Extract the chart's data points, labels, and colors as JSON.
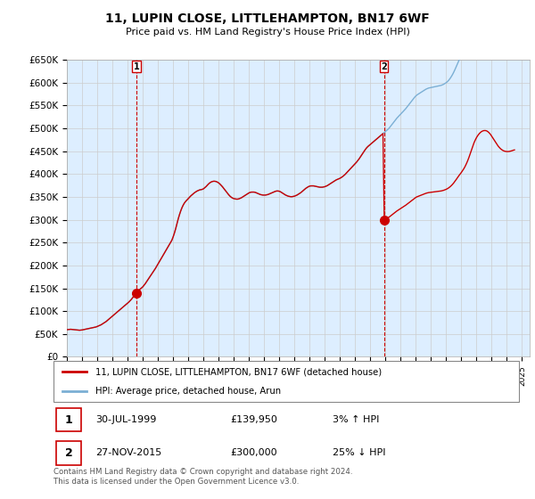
{
  "title": "11, LUPIN CLOSE, LITTLEHAMPTON, BN17 6WF",
  "subtitle": "Price paid vs. HM Land Registry's House Price Index (HPI)",
  "ylabel_ticks": [
    "£0",
    "£50K",
    "£100K",
    "£150K",
    "£200K",
    "£250K",
    "£300K",
    "£350K",
    "£400K",
    "£450K",
    "£500K",
    "£550K",
    "£600K",
    "£650K"
  ],
  "ylim": [
    0,
    650000
  ],
  "yticks": [
    0,
    50000,
    100000,
    150000,
    200000,
    250000,
    300000,
    350000,
    400000,
    450000,
    500000,
    550000,
    600000,
    650000
  ],
  "xlim_start": 1995.3,
  "xlim_end": 2025.5,
  "transaction1": {
    "year": 1999.58,
    "price": 139950,
    "label": "1"
  },
  "transaction2": {
    "year": 2015.9,
    "price": 300000,
    "label": "2"
  },
  "legend_line1": "11, LUPIN CLOSE, LITTLEHAMPTON, BN17 6WF (detached house)",
  "legend_line2": "HPI: Average price, detached house, Arun",
  "table_row1_num": "1",
  "table_row1_date": "30-JUL-1999",
  "table_row1_price": "£139,950",
  "table_row1_hpi": "3% ↑ HPI",
  "table_row2_num": "2",
  "table_row2_date": "27-NOV-2015",
  "table_row2_price": "£300,000",
  "table_row2_hpi": "25% ↓ HPI",
  "footer": "Contains HM Land Registry data © Crown copyright and database right 2024.\nThis data is licensed under the Open Government Licence v3.0.",
  "line_color_property": "#cc0000",
  "line_color_hpi": "#7bafd4",
  "marker_color": "#cc0000",
  "vline_color": "#cc0000",
  "grid_color": "#cccccc",
  "bg_color": "#ddeeff",
  "hpi_months": [
    1995.0,
    1995.083,
    1995.167,
    1995.25,
    1995.333,
    1995.417,
    1995.5,
    1995.583,
    1995.667,
    1995.75,
    1995.833,
    1995.917,
    1996.0,
    1996.083,
    1996.167,
    1996.25,
    1996.333,
    1996.417,
    1996.5,
    1996.583,
    1996.667,
    1996.75,
    1996.833,
    1996.917,
    1997.0,
    1997.083,
    1997.167,
    1997.25,
    1997.333,
    1997.417,
    1997.5,
    1997.583,
    1997.667,
    1997.75,
    1997.833,
    1997.917,
    1998.0,
    1998.083,
    1998.167,
    1998.25,
    1998.333,
    1998.417,
    1998.5,
    1998.583,
    1998.667,
    1998.75,
    1998.833,
    1998.917,
    1999.0,
    1999.083,
    1999.167,
    1999.25,
    1999.333,
    1999.417,
    1999.5,
    1999.583,
    1999.667,
    1999.75,
    1999.833,
    1999.917,
    2000.0,
    2000.083,
    2000.167,
    2000.25,
    2000.333,
    2000.417,
    2000.5,
    2000.583,
    2000.667,
    2000.75,
    2000.833,
    2000.917,
    2001.0,
    2001.083,
    2001.167,
    2001.25,
    2001.333,
    2001.417,
    2001.5,
    2001.583,
    2001.667,
    2001.75,
    2001.833,
    2001.917,
    2002.0,
    2002.083,
    2002.167,
    2002.25,
    2002.333,
    2002.417,
    2002.5,
    2002.583,
    2002.667,
    2002.75,
    2002.833,
    2002.917,
    2003.0,
    2003.083,
    2003.167,
    2003.25,
    2003.333,
    2003.417,
    2003.5,
    2003.583,
    2003.667,
    2003.75,
    2003.833,
    2003.917,
    2004.0,
    2004.083,
    2004.167,
    2004.25,
    2004.333,
    2004.417,
    2004.5,
    2004.583,
    2004.667,
    2004.75,
    2004.833,
    2004.917,
    2005.0,
    2005.083,
    2005.167,
    2005.25,
    2005.333,
    2005.417,
    2005.5,
    2005.583,
    2005.667,
    2005.75,
    2005.833,
    2005.917,
    2006.0,
    2006.083,
    2006.167,
    2006.25,
    2006.333,
    2006.417,
    2006.5,
    2006.583,
    2006.667,
    2006.75,
    2006.833,
    2006.917,
    2007.0,
    2007.083,
    2007.167,
    2007.25,
    2007.333,
    2007.417,
    2007.5,
    2007.583,
    2007.667,
    2007.75,
    2007.833,
    2007.917,
    2008.0,
    2008.083,
    2008.167,
    2008.25,
    2008.333,
    2008.417,
    2008.5,
    2008.583,
    2008.667,
    2008.75,
    2008.833,
    2008.917,
    2009.0,
    2009.083,
    2009.167,
    2009.25,
    2009.333,
    2009.417,
    2009.5,
    2009.583,
    2009.667,
    2009.75,
    2009.833,
    2009.917,
    2010.0,
    2010.083,
    2010.167,
    2010.25,
    2010.333,
    2010.417,
    2010.5,
    2010.583,
    2010.667,
    2010.75,
    2010.833,
    2010.917,
    2011.0,
    2011.083,
    2011.167,
    2011.25,
    2011.333,
    2011.417,
    2011.5,
    2011.583,
    2011.667,
    2011.75,
    2011.833,
    2011.917,
    2012.0,
    2012.083,
    2012.167,
    2012.25,
    2012.333,
    2012.417,
    2012.5,
    2012.583,
    2012.667,
    2012.75,
    2012.833,
    2012.917,
    2013.0,
    2013.083,
    2013.167,
    2013.25,
    2013.333,
    2013.417,
    2013.5,
    2013.583,
    2013.667,
    2013.75,
    2013.833,
    2013.917,
    2014.0,
    2014.083,
    2014.167,
    2014.25,
    2014.333,
    2014.417,
    2014.5,
    2014.583,
    2014.667,
    2014.75,
    2014.833,
    2014.917,
    2015.0,
    2015.083,
    2015.167,
    2015.25,
    2015.333,
    2015.417,
    2015.5,
    2015.583,
    2015.667,
    2015.75,
    2015.833,
    2015.917,
    2016.0,
    2016.083,
    2016.167,
    2016.25,
    2016.333,
    2016.417,
    2016.5,
    2016.583,
    2016.667,
    2016.75,
    2016.833,
    2016.917,
    2017.0,
    2017.083,
    2017.167,
    2017.25,
    2017.333,
    2017.417,
    2017.5,
    2017.583,
    2017.667,
    2017.75,
    2017.833,
    2017.917,
    2018.0,
    2018.083,
    2018.167,
    2018.25,
    2018.333,
    2018.417,
    2018.5,
    2018.583,
    2018.667,
    2018.75,
    2018.833,
    2018.917,
    2019.0,
    2019.083,
    2019.167,
    2019.25,
    2019.333,
    2019.417,
    2019.5,
    2019.583,
    2019.667,
    2019.75,
    2019.833,
    2019.917,
    2020.0,
    2020.083,
    2020.167,
    2020.25,
    2020.333,
    2020.417,
    2020.5,
    2020.583,
    2020.667,
    2020.75,
    2020.833,
    2020.917,
    2021.0,
    2021.083,
    2021.167,
    2021.25,
    2021.333,
    2021.417,
    2021.5,
    2021.583,
    2021.667,
    2021.75,
    2021.833,
    2021.917,
    2022.0,
    2022.083,
    2022.167,
    2022.25,
    2022.333,
    2022.417,
    2022.5,
    2022.583,
    2022.667,
    2022.75,
    2022.833,
    2022.917,
    2023.0,
    2023.083,
    2023.167,
    2023.25,
    2023.333,
    2023.417,
    2023.5,
    2023.583,
    2023.667,
    2023.75,
    2023.833,
    2023.917,
    2024.0,
    2024.083,
    2024.167,
    2024.25,
    2024.333,
    2024.417,
    2024.5
  ],
  "hpi_index": [
    100,
    100.5,
    101,
    101.5,
    101,
    100.5,
    100,
    99.5,
    99,
    98.5,
    98,
    98.5,
    99,
    100,
    101,
    102,
    103,
    104,
    105,
    106,
    107,
    108,
    109,
    110,
    112,
    114,
    116,
    118,
    121,
    124,
    127,
    130,
    134,
    138,
    142,
    146,
    150,
    154,
    158,
    162,
    166,
    170,
    174,
    178,
    182,
    186,
    190,
    194,
    198,
    202,
    207,
    212,
    218,
    224,
    230,
    236,
    242,
    246,
    250,
    254,
    258,
    264,
    270,
    277,
    284,
    291,
    298,
    305,
    312,
    319,
    326,
    334,
    342,
    350,
    358,
    366,
    374,
    382,
    390,
    398,
    406,
    414,
    422,
    430,
    442,
    456,
    472,
    490,
    508,
    524,
    538,
    550,
    560,
    568,
    574,
    579,
    584,
    589,
    594,
    598,
    602,
    606,
    609,
    612,
    614,
    616,
    617,
    618,
    620,
    624,
    628,
    633,
    638,
    642,
    645,
    647,
    648,
    648,
    647,
    645,
    642,
    638,
    633,
    628,
    622,
    616,
    610,
    604,
    598,
    593,
    589,
    586,
    584,
    583,
    582,
    582,
    583,
    585,
    587,
    590,
    593,
    596,
    599,
    602,
    605,
    607,
    608,
    608,
    608,
    607,
    605,
    603,
    601,
    599,
    598,
    597,
    597,
    597,
    598,
    599,
    601,
    603,
    605,
    607,
    609,
    611,
    612,
    612,
    611,
    609,
    606,
    603,
    600,
    597,
    595,
    593,
    592,
    591,
    591,
    592,
    593,
    595,
    597,
    600,
    603,
    606,
    610,
    614,
    618,
    622,
    625,
    628,
    630,
    631,
    631,
    631,
    630,
    629,
    628,
    627,
    626,
    626,
    626,
    627,
    628,
    630,
    632,
    635,
    638,
    641,
    644,
    647,
    650,
    653,
    655,
    657,
    659,
    662,
    665,
    669,
    673,
    678,
    683,
    688,
    693,
    698,
    703,
    708,
    713,
    718,
    724,
    730,
    737,
    744,
    751,
    758,
    765,
    771,
    776,
    780,
    784,
    788,
    792,
    796,
    800,
    804,
    808,
    812,
    816,
    820,
    824,
    828,
    832,
    836,
    840,
    845,
    851,
    857,
    863,
    869,
    875,
    881,
    886,
    891,
    896,
    901,
    906,
    911,
    916,
    922,
    928,
    934,
    940,
    946,
    952,
    958,
    963,
    967,
    970,
    973,
    976,
    979,
    982,
    985,
    988,
    990,
    992,
    993,
    994,
    995,
    996,
    997,
    998,
    999,
    1000,
    1001,
    1002,
    1004,
    1006,
    1009,
    1012,
    1016,
    1021,
    1027,
    1034,
    1042,
    1051,
    1061,
    1072,
    1083,
    1094,
    1104,
    1114,
    1125,
    1137,
    1151,
    1167,
    1185,
    1205,
    1227,
    1250,
    1273,
    1293,
    1310,
    1325,
    1337,
    1347,
    1355,
    1361,
    1365,
    1367,
    1367,
    1365,
    1360,
    1353,
    1344,
    1333,
    1321,
    1309,
    1297,
    1285,
    1274,
    1265,
    1257,
    1251,
    1246,
    1243,
    1241,
    1240,
    1240,
    1241,
    1243,
    1245,
    1248,
    1250
  ]
}
